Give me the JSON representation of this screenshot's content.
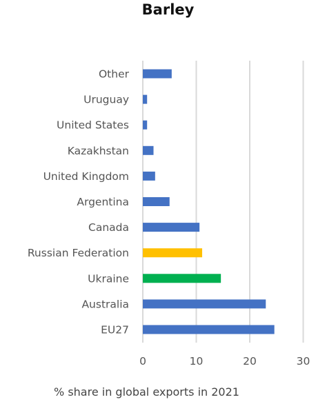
{
  "chart_data": {
    "type": "bar",
    "orientation": "horizontal",
    "title": "Barley",
    "xlabel": "% share in global exports in 2021",
    "ylabel": "",
    "categories": [
      "Other",
      "Uruguay",
      "United States",
      "Kazakhstan",
      "United Kingdom",
      "Argentina",
      "Canada",
      "Russian Federation",
      "Ukraine",
      "Australia",
      "EU27"
    ],
    "values": [
      5.4,
      0.8,
      0.8,
      2.0,
      2.3,
      5.0,
      10.6,
      11.1,
      14.6,
      23.0,
      24.6
    ],
    "bar_colors": [
      "#4472c4",
      "#4472c4",
      "#4472c4",
      "#4472c4",
      "#4472c4",
      "#4472c4",
      "#4472c4",
      "#ffc000",
      "#00b050",
      "#4472c4",
      "#4472c4"
    ],
    "xlim": [
      0,
      30
    ],
    "xticks": [
      0,
      10,
      20,
      30
    ],
    "grid": true,
    "legend": "none"
  }
}
